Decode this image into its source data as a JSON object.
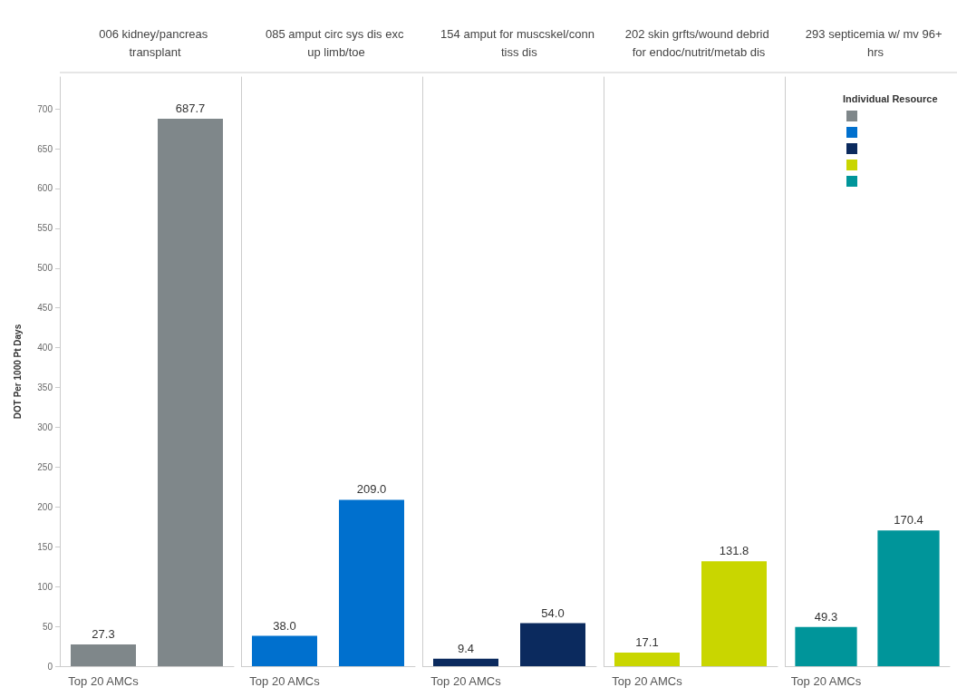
{
  "chart_data": [
    {
      "type": "bar",
      "title": "006 kidney/pancreas transplant",
      "ylabel": "DOT Per 1000 Pt Days",
      "categories": [
        "Top 20 AMCs",
        null
      ],
      "values": [
        27.3,
        687.7
      ],
      "value_labels": [
        "27.3",
        "687.7"
      ],
      "colors": [
        "#7f878a",
        "#7f878a"
      ],
      "ylim": [
        0,
        740
      ],
      "yticks": [
        0,
        50,
        100,
        150,
        200,
        250,
        300,
        350,
        400,
        450,
        500,
        550,
        600,
        650,
        700
      ]
    },
    {
      "type": "bar",
      "title": "085 amput circ sys dis exc up limb/toe",
      "categories": [
        "Top 20 AMCs",
        null
      ],
      "values": [
        38.0,
        209.0
      ],
      "value_labels": [
        "38.0",
        "209.0"
      ],
      "colors": [
        "#0070ce",
        "#0070ce"
      ],
      "ylim": [
        0,
        740
      ],
      "yticks": [
        0,
        50,
        100,
        150,
        200,
        250,
        300,
        350,
        400,
        450,
        500,
        550,
        600,
        650,
        700
      ],
      "tick_labels": "x"
    },
    {
      "type": "bar",
      "title": "154 amput for muscskel/conn tiss dis",
      "categories": [
        "Top 20 AMCs",
        null
      ],
      "values": [
        9.4,
        54.0
      ],
      "value_labels": [
        "9.4",
        "54.0"
      ],
      "colors": [
        "#0b2a5e",
        "#0b2a5e"
      ],
      "ylim": [
        0,
        740
      ],
      "yticks": [
        0,
        50,
        100,
        150,
        200,
        250,
        300,
        350,
        400,
        450,
        500,
        550,
        600,
        650,
        700
      ],
      "tick_labels": "x"
    },
    {
      "type": "bar",
      "title": "202 skin grfts/wound debrid for endoc/nutrit/metab dis",
      "categories": [
        "Top 20 AMCs",
        null
      ],
      "values": [
        17.1,
        131.8
      ],
      "value_labels": [
        "17.1",
        "131.8"
      ],
      "colors": [
        "#c9d600",
        "#c9d600"
      ],
      "ylim": [
        0,
        740
      ],
      "yticks": [
        0,
        50,
        100,
        150,
        200,
        250,
        300,
        350,
        400,
        450,
        500,
        550,
        600,
        650,
        700
      ],
      "tick_labels": "x"
    },
    {
      "type": "bar",
      "title": "293 septicemia w/ mv 96+ hrs",
      "legend_title": "Individual Resource",
      "categories": [
        "Top 20 AMCs",
        null
      ],
      "values": [
        49.3,
        170.4
      ],
      "value_labels": [
        "49.3",
        "170.4"
      ],
      "colors": [
        "#00959a",
        "#00959a"
      ],
      "ylim": [
        0,
        740
      ],
      "yticks": [
        0,
        50,
        100,
        150,
        200,
        250,
        300,
        350,
        400,
        450,
        500,
        550,
        600,
        650,
        700
      ],
      "tick_labels": "x"
    }
  ]
}
